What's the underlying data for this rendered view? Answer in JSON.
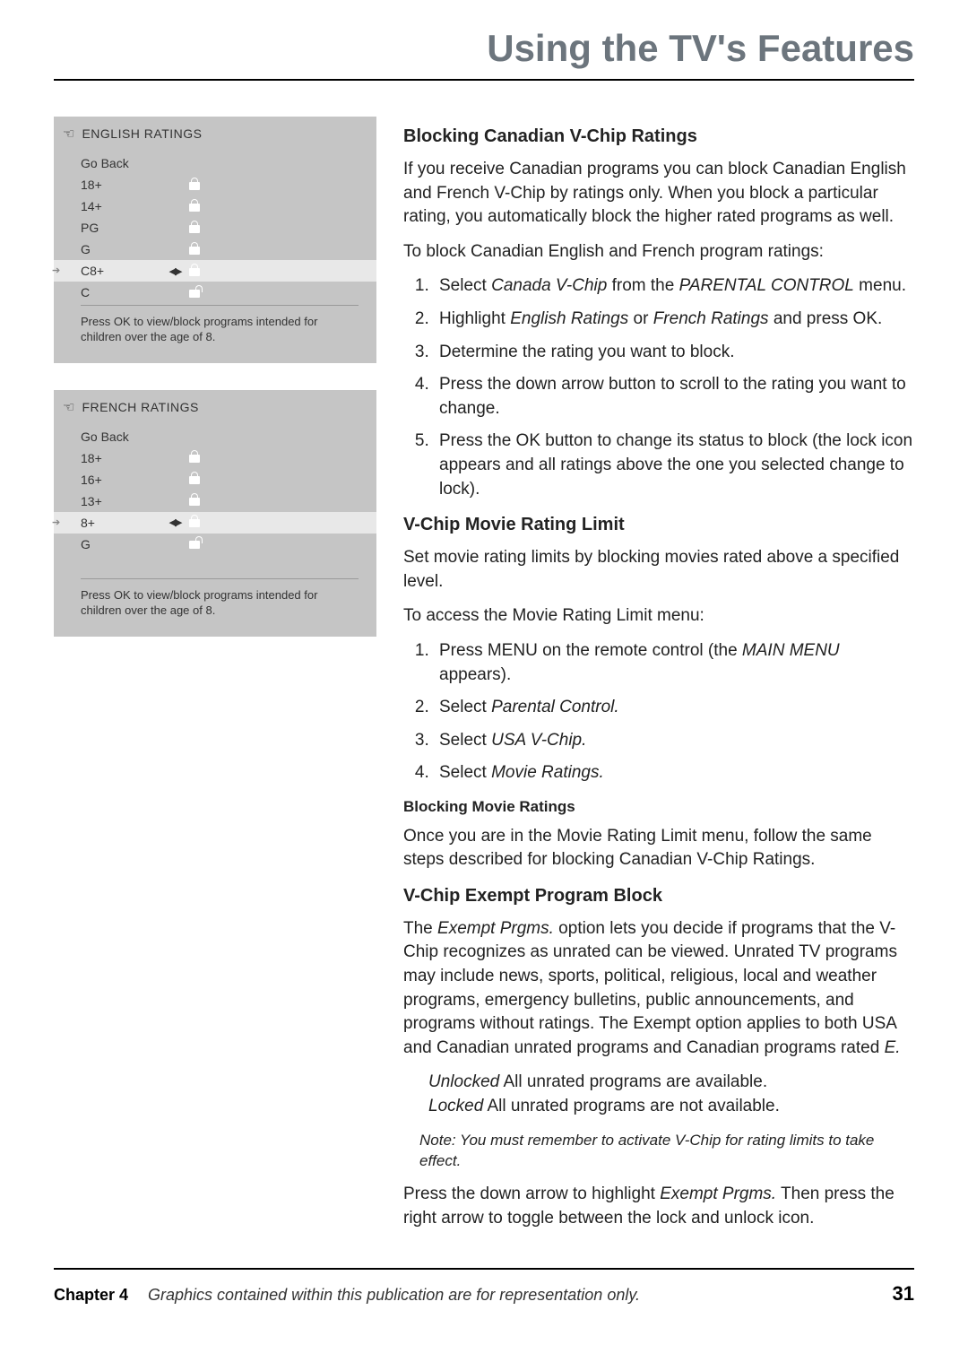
{
  "page_title": "Using the TV's Features",
  "menus": {
    "english": {
      "title": "ENGLISH RATINGS",
      "go_back": "Go Back",
      "rows": [
        {
          "label": "18+",
          "lock": "locked",
          "highlighted": false,
          "arrows": false
        },
        {
          "label": "14+",
          "lock": "locked",
          "highlighted": false,
          "arrows": false
        },
        {
          "label": "PG",
          "lock": "locked",
          "highlighted": false,
          "arrows": false
        },
        {
          "label": "G",
          "lock": "locked",
          "highlighted": false,
          "arrows": false
        },
        {
          "label": "C8+",
          "lock": "locked",
          "highlighted": true,
          "arrows": true
        },
        {
          "label": "C",
          "lock": "unlocked",
          "highlighted": false,
          "arrows": false
        }
      ],
      "help": "Press OK to view/block programs intended for children over the age of 8."
    },
    "french": {
      "title": "FRENCH RATINGS",
      "go_back": "Go Back",
      "rows": [
        {
          "label": "18+",
          "lock": "locked",
          "highlighted": false,
          "arrows": false
        },
        {
          "label": "16+",
          "lock": "locked",
          "highlighted": false,
          "arrows": false
        },
        {
          "label": "13+",
          "lock": "locked",
          "highlighted": false,
          "arrows": false
        },
        {
          "label": "8+",
          "lock": "locked",
          "highlighted": true,
          "arrows": true
        },
        {
          "label": "G",
          "lock": "unlocked",
          "highlighted": false,
          "arrows": false
        }
      ],
      "help": "Press OK to view/block programs intended for children over the age of 8."
    }
  },
  "sections": {
    "h1": "Blocking Canadian V-Chip Ratings",
    "p1": "If you receive Canadian programs you can block Canadian English and French V-Chip by ratings only. When you block a particular rating, you automatically block the higher rated programs as well.",
    "p2": "To block Canadian English and French program ratings:",
    "steps1": {
      "s1a": "Select ",
      "s1b": "Canada V-Chip",
      "s1c": " from the ",
      "s1d": "PARENTAL CONTROL",
      "s1e": " menu.",
      "s2a": "Highlight ",
      "s2b": "English Ratings",
      "s2c": " or ",
      "s2d": "French Ratings",
      "s2e": " and press OK.",
      "s3": "Determine the rating you want to block.",
      "s4": "Press the down arrow button to scroll to the rating you want to change.",
      "s5": "Press the OK button to change its status to block (the lock icon appears and all ratings above the one you selected change to lock)."
    },
    "h2": "V-Chip Movie Rating Limit",
    "p3": "Set movie rating limits by blocking movies rated above a specified level.",
    "p4": "To access the Movie Rating Limit menu:",
    "steps2": {
      "s1a": "Press MENU on the remote control (the ",
      "s1b": "MAIN MENU",
      "s1c": " appears).",
      "s2a": "Select ",
      "s2b": "Parental Control.",
      "s3a": "Select ",
      "s3b": "USA V-Chip.",
      "s4a": "Select ",
      "s4b": "Movie Ratings."
    },
    "h3": "Blocking Movie Ratings",
    "p5": "Once you are in the Movie Rating Limit menu, follow the same steps described for blocking Canadian V-Chip Ratings.",
    "h4": "V-Chip Exempt Program Block",
    "p6a": "The ",
    "p6b": "Exempt Prgms.",
    "p6c": " option lets you decide if programs that the V-Chip recognizes as unrated can be viewed. Unrated TV programs may include news, sports, political, religious, local and weather programs, emergency bulletins, public announcements, and programs without ratings. The Exempt option applies to both USA and Canadian unrated programs and Canadian programs rated ",
    "p6d": "E.",
    "unlocked_label": "Unlocked",
    "unlocked_text": "  All unrated programs are available.",
    "locked_label": "Locked",
    "locked_text": "  All unrated programs are not available.",
    "note": "Note: You must remember to activate V-Chip for rating limits to take effect.",
    "p7a": "Press the down arrow to highlight ",
    "p7b": "Exempt Prgms.",
    "p7c": " Then press the right arrow to toggle between the lock and unlock icon."
  },
  "footer": {
    "chapter": "Chapter 4",
    "caption": "Graphics contained within this publication are for representation only.",
    "page": "31"
  },
  "colors": {
    "title_gray": "#6c757d",
    "panel_bg": "#c5c5c5",
    "panel_highlight": "#e8e8e8"
  }
}
